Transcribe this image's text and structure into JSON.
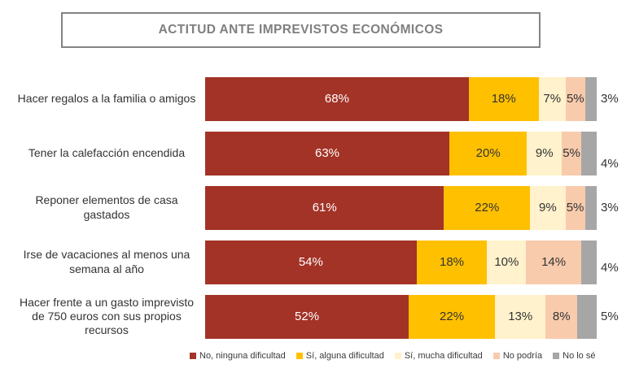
{
  "page": {
    "background": "#ffffff"
  },
  "title": "ACTITUD ANTE IMPREVISTOS ECONÓMICOS",
  "chart_data": {
    "type": "bar",
    "orientation": "horizontal",
    "stacked_percent": true,
    "grid": false,
    "xlim": [
      0,
      100
    ],
    "value_suffix": "%",
    "legend_position": "bottom",
    "outside_label_series": "No lo sé",
    "categories": [
      "Hacer regalos a la familia o amigos",
      "Tener la calefacción encendida",
      "Reponer elementos de casa gastados",
      "Irse de vacaciones al menos una semana al año",
      "Hacer frente a un gasto imprevisto de 750 euros con sus propios recursos"
    ],
    "series": [
      {
        "name": "No, ninguna dificultad",
        "color": "#A33327",
        "label_color": "#FFFFFF",
        "values": [
          68,
          63,
          61,
          54,
          52
        ]
      },
      {
        "name": "Sí, alguna dificultad",
        "color": "#FFC000",
        "label_color": "#333333",
        "values": [
          18,
          20,
          22,
          18,
          22
        ]
      },
      {
        "name": "Sí, mucha dificultad",
        "color": "#FFF2CC",
        "label_color": "#333333",
        "values": [
          7,
          9,
          9,
          10,
          13
        ]
      },
      {
        "name": "No podría",
        "color": "#F8CBAD",
        "label_color": "#333333",
        "values": [
          5,
          5,
          5,
          14,
          8
        ]
      },
      {
        "name": "No lo sé",
        "color": "#A6A6A6",
        "label_color": "#333333",
        "values": [
          3,
          4,
          3,
          4,
          5
        ]
      }
    ],
    "colors": {
      "title_text": "#7f7f7f",
      "title_border": "#848484",
      "axis_text": "#333333"
    }
  }
}
